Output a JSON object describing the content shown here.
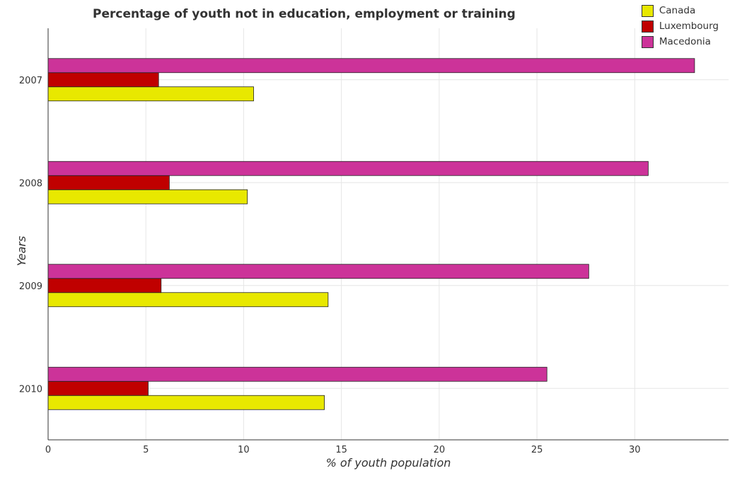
{
  "chart_data": {
    "type": "bar",
    "orientation": "horizontal",
    "title": "Percentage of youth not in education, employment or training",
    "xlabel": "% of youth population",
    "ylabel": "Years",
    "categories": [
      "2007",
      "2008",
      "2009",
      "2010"
    ],
    "xlim": [
      0,
      34.8
    ],
    "xticks": [
      0,
      5,
      10,
      15,
      20,
      25,
      30
    ],
    "grid": true,
    "legend_position": "top-right",
    "series": [
      {
        "name": "Canada",
        "color": "#e8e800",
        "values": [
          10.51,
          10.19,
          14.32,
          14.13
        ]
      },
      {
        "name": "Luxembourg",
        "color": "#c00000",
        "values": [
          5.65,
          6.2,
          5.78,
          5.12
        ]
      },
      {
        "name": "Macedonia",
        "color": "#cc3399",
        "values": [
          33.06,
          30.69,
          27.65,
          25.51
        ]
      }
    ]
  }
}
